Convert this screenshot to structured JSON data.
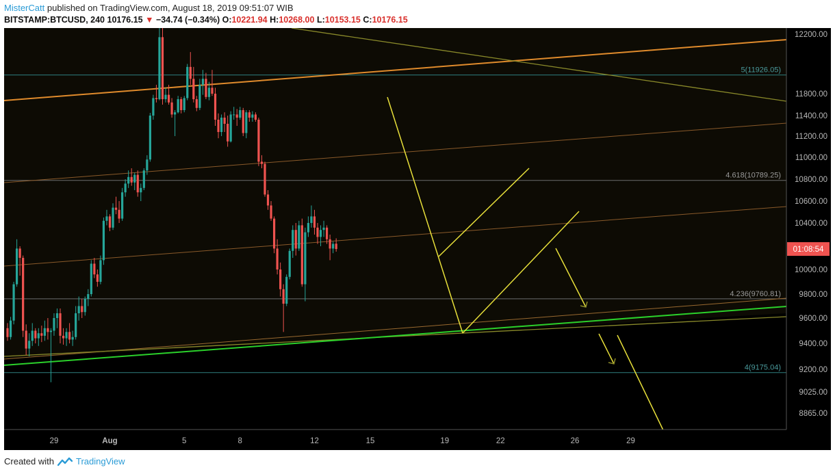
{
  "header": {
    "user": "MisterCatt",
    "published_text": "published on TradingView.com, August 18, 2019 09:51:07 WIB",
    "symbol": "BITSTAMP:BTCUSD, 240",
    "last": "10176.15",
    "change": "−34.74 (−0.34%)",
    "open_label": "O:",
    "open": "10221.94",
    "high_label": "H:",
    "high": "10268.00",
    "low_label": "L:",
    "low": "10153.15",
    "close_label": "C:",
    "close": "10176.15"
  },
  "footer": {
    "created_with": "Created with",
    "brand": "TradingView"
  },
  "colors": {
    "bull": "#26a69a",
    "bear": "#ef5350",
    "background": "#000000",
    "shade": "#0d0b04",
    "orange": "#e08b2c",
    "olive": "#8a8a2a",
    "green": "#2bd12b",
    "yellow": "#e8e03a",
    "teal": "#2f7f80"
  },
  "chart_data": {
    "type": "candlestick",
    "symbol": "BITSTAMP:BTCUSD",
    "interval": "240",
    "y_ticks": [
      "12200.00",
      "11800.00",
      "11400.00",
      "11200.00",
      "11000.00",
      "10800.00",
      "10600.00",
      "10400.00",
      "10000.00",
      "9800.00",
      "9600.00",
      "9400.00",
      "9200.00",
      "9025.00",
      "8865.00"
    ],
    "x_ticks": [
      {
        "label": "29",
        "bar": 15
      },
      {
        "label": "Aug",
        "bar": 33
      },
      {
        "label": "5",
        "bar": 57
      },
      {
        "label": "8",
        "bar": 75
      },
      {
        "label": "12",
        "bar": 99
      },
      {
        "label": "15",
        "bar": 117
      },
      {
        "label": "19",
        "bar": 141
      },
      {
        "label": "22",
        "bar": 159
      },
      {
        "label": "26",
        "bar": 183
      },
      {
        "label": "29",
        "bar": 201
      }
    ],
    "price_label": "01:08:54",
    "last_price": 10176.15,
    "fib_levels": [
      {
        "label": "5(11926.05)",
        "price": 11926.05
      },
      {
        "label": "4.618(10789.25)",
        "price": 10789.25
      },
      {
        "label": "4.236(9760.81)",
        "price": 9760.81
      },
      {
        "label": "4(9175.04)",
        "price": 9175.04
      }
    ],
    "candles": [
      [
        9520,
        9560,
        9420,
        9450
      ],
      [
        9450,
        9610,
        9430,
        9580
      ],
      [
        9580,
        9900,
        9550,
        9880
      ],
      [
        9880,
        10260,
        9860,
        10180
      ],
      [
        10180,
        10200,
        9950,
        10100
      ],
      [
        10100,
        10120,
        9450,
        9500
      ],
      [
        9500,
        9550,
        9310,
        9360
      ],
      [
        9360,
        9480,
        9300,
        9420
      ],
      [
        9420,
        9560,
        9380,
        9500
      ],
      [
        9500,
        9520,
        9400,
        9440
      ],
      [
        9440,
        9520,
        9380,
        9480
      ],
      [
        9480,
        9540,
        9410,
        9460
      ],
      [
        9460,
        9580,
        9420,
        9520
      ],
      [
        9520,
        9600,
        9430,
        9490
      ],
      [
        9490,
        9520,
        9100,
        9500
      ],
      [
        9500,
        9640,
        9460,
        9600
      ],
      [
        9600,
        9680,
        9520,
        9640
      ],
      [
        9640,
        9680,
        9400,
        9460
      ],
      [
        9460,
        9520,
        9390,
        9440
      ],
      [
        9440,
        9520,
        9380,
        9490
      ],
      [
        9490,
        9560,
        9400,
        9430
      ],
      [
        9430,
        9500,
        9380,
        9450
      ],
      [
        9450,
        9700,
        9430,
        9640
      ],
      [
        9640,
        9780,
        9580,
        9700
      ],
      [
        9700,
        9760,
        9600,
        9650
      ],
      [
        9650,
        9780,
        9620,
        9760
      ],
      [
        9760,
        9840,
        9700,
        9800
      ],
      [
        9800,
        10080,
        9780,
        10050
      ],
      [
        10050,
        10100,
        9930,
        9960
      ],
      [
        9960,
        10000,
        9860,
        9900
      ],
      [
        9900,
        10120,
        9880,
        10080
      ],
      [
        10080,
        10450,
        10040,
        10420
      ],
      [
        10420,
        10520,
        10380,
        10460
      ],
      [
        10460,
        10480,
        10330,
        10360
      ],
      [
        10360,
        10580,
        10340,
        10540
      ],
      [
        10540,
        10640,
        10480,
        10520
      ],
      [
        10520,
        10600,
        10400,
        10440
      ],
      [
        10440,
        10720,
        10420,
        10680
      ],
      [
        10680,
        10800,
        10640,
        10760
      ],
      [
        10760,
        10880,
        10720,
        10820
      ],
      [
        10820,
        10900,
        10740,
        10770
      ],
      [
        10770,
        10860,
        10700,
        10840
      ],
      [
        10840,
        10880,
        10640,
        10680
      ],
      [
        10680,
        10760,
        10600,
        10720
      ],
      [
        10720,
        10900,
        10700,
        10880
      ],
      [
        10880,
        11020,
        10840,
        10980
      ],
      [
        10980,
        11450,
        10960,
        11400
      ],
      [
        11400,
        11780,
        11360,
        11720
      ],
      [
        11720,
        11860,
        11640,
        11700
      ],
      [
        11700,
        12260,
        11680,
        12180
      ],
      [
        12180,
        12250,
        11600,
        11700
      ],
      [
        11700,
        11840,
        11640,
        11780
      ],
      [
        11780,
        11860,
        11600,
        11640
      ],
      [
        11640,
        11720,
        11380,
        11420
      ],
      [
        11420,
        11500,
        11200,
        11460
      ],
      [
        11460,
        11760,
        11440,
        11700
      ],
      [
        11700,
        11740,
        11440,
        11500
      ],
      [
        11500,
        11760,
        11460,
        11720
      ],
      [
        11720,
        12000,
        11680,
        11980
      ],
      [
        11980,
        12080,
        11860,
        11900
      ],
      [
        11900,
        11980,
        11640,
        11700
      ],
      [
        11700,
        11760,
        11480,
        11540
      ],
      [
        11540,
        11900,
        11500,
        11860
      ],
      [
        11860,
        11960,
        11780,
        11900
      ],
      [
        11900,
        11940,
        11700,
        11740
      ],
      [
        11740,
        11880,
        11680,
        11840
      ],
      [
        11840,
        11960,
        11760,
        11800
      ],
      [
        11800,
        11840,
        11300,
        11360
      ],
      [
        11360,
        11440,
        11180,
        11240
      ],
      [
        11240,
        11420,
        11200,
        11380
      ],
      [
        11380,
        11460,
        11240,
        11320
      ],
      [
        11320,
        11400,
        11100,
        11150
      ],
      [
        11150,
        11480,
        11140,
        11420
      ],
      [
        11420,
        11560,
        11360,
        11420
      ],
      [
        11420,
        11520,
        11300,
        11380
      ],
      [
        11380,
        11560,
        11360,
        11500
      ],
      [
        11500,
        11540,
        11200,
        11230
      ],
      [
        11230,
        11500,
        11180,
        11460
      ],
      [
        11460,
        11500,
        11340,
        11380
      ],
      [
        11380,
        11480,
        11340,
        11420
      ],
      [
        11420,
        11460,
        11340,
        11360
      ],
      [
        11360,
        11380,
        10920,
        10960
      ],
      [
        10960,
        11020,
        10900,
        10940
      ],
      [
        10940,
        10960,
        10640,
        10660
      ],
      [
        10660,
        10700,
        10520,
        10560
      ],
      [
        10560,
        10600,
        10420,
        10440
      ],
      [
        10440,
        10460,
        10140,
        10180
      ],
      [
        10180,
        10260,
        9960,
        10000
      ],
      [
        10000,
        10060,
        9780,
        9840
      ],
      [
        9840,
        9880,
        9490,
        9720
      ],
      [
        9720,
        9960,
        9700,
        9940
      ],
      [
        9940,
        10180,
        9920,
        10160
      ],
      [
        10160,
        10380,
        10100,
        10340
      ],
      [
        10340,
        10400,
        10120,
        10180
      ],
      [
        10180,
        10420,
        10160,
        10380
      ],
      [
        10380,
        10440,
        9860,
        9880
      ],
      [
        9880,
        10360,
        9740,
        10320
      ],
      [
        10320,
        10460,
        10280,
        10400
      ],
      [
        10400,
        10560,
        10360,
        10460
      ],
      [
        10460,
        10520,
        10300,
        10360
      ],
      [
        10360,
        10400,
        10220,
        10280
      ],
      [
        10280,
        10380,
        10200,
        10340
      ],
      [
        10340,
        10420,
        10280,
        10360
      ],
      [
        10360,
        10380,
        10220,
        10260
      ],
      [
        10260,
        10300,
        10080,
        10180
      ],
      [
        10180,
        10240,
        10140,
        10220
      ],
      [
        10221.94,
        10268,
        10153.15,
        10176.15
      ]
    ]
  }
}
